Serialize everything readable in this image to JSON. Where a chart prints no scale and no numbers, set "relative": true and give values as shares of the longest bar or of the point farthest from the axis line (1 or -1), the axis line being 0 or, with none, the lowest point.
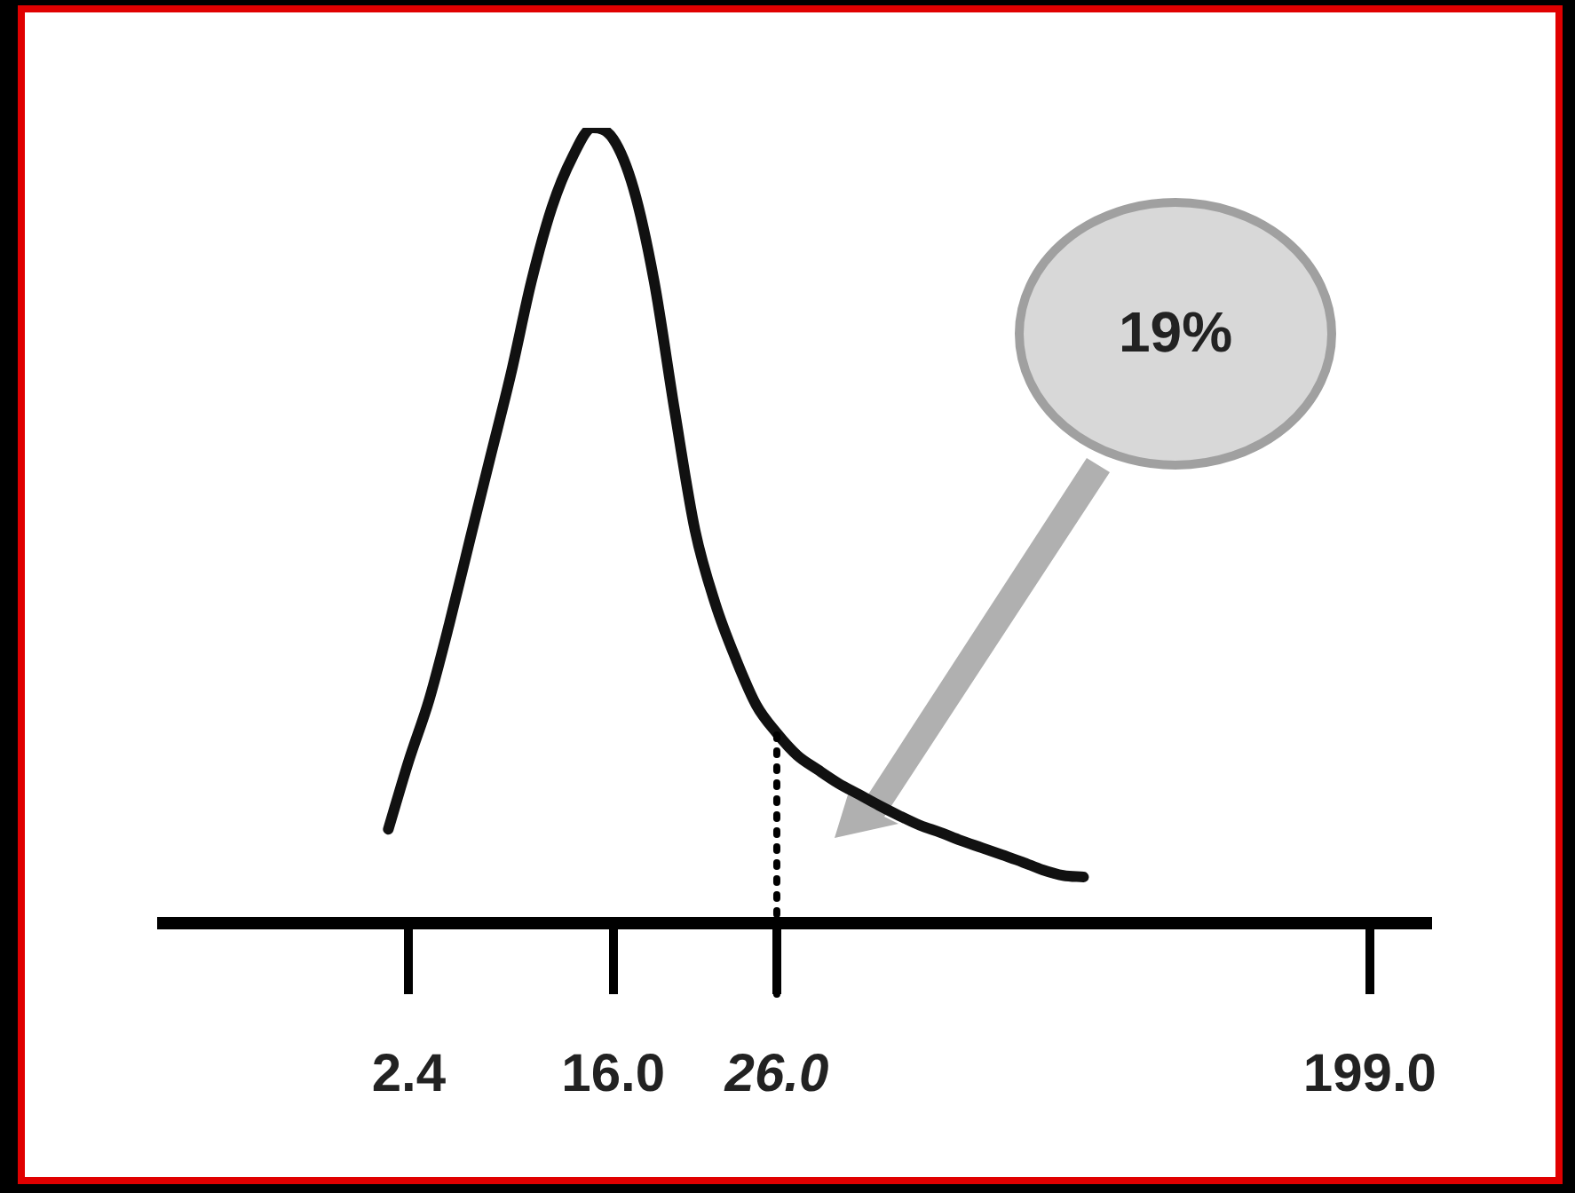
{
  "chart_data": {
    "type": "line",
    "relative": true,
    "categories": [
      null,
      null,
      null,
      null,
      null,
      null,
      null,
      null,
      null,
      null,
      null,
      null,
      "2.4",
      null,
      null,
      null,
      null,
      null,
      null,
      null,
      null,
      null,
      "16.0",
      null,
      null,
      null,
      null,
      null,
      null,
      null,
      "26.0",
      null,
      null,
      null,
      null,
      null,
      null,
      null,
      null,
      null,
      null,
      null,
      null,
      null,
      null,
      null,
      null,
      null,
      null,
      null,
      null,
      null,
      null,
      null,
      null,
      null,
      null,
      null,
      null,
      "199.0",
      null,
      null,
      null
    ],
    "series": [
      {
        "color": "#111111",
        "values": [
          null,
          null,
          null,
          null,
          null,
          null,
          null,
          null,
          null,
          null,
          null,
          0.118,
          0.204,
          0.281,
          0.378,
          0.483,
          0.587,
          0.691,
          0.807,
          0.9,
          0.963,
          1.0,
          0.986,
          0.923,
          0.807,
          0.645,
          0.494,
          0.401,
          0.332,
          0.274,
          0.239,
          0.211,
          0.193,
          0.176,
          0.162,
          0.148,
          0.135,
          0.123,
          0.114,
          0.104,
          0.095,
          0.086,
          0.077,
          0.067,
          0.06,
          0.058,
          null,
          null,
          null,
          null,
          null,
          null,
          null,
          null,
          null,
          null,
          null,
          null,
          null,
          null,
          null,
          null,
          null
        ]
      }
    ],
    "ref_lines": [
      {
        "axis": "x",
        "value": "26.0",
        "color": "#000000",
        "line_style": "dotted"
      }
    ],
    "annotations": [
      "19%"
    ],
    "marker": "none",
    "legend": false,
    "grid": false
  }
}
